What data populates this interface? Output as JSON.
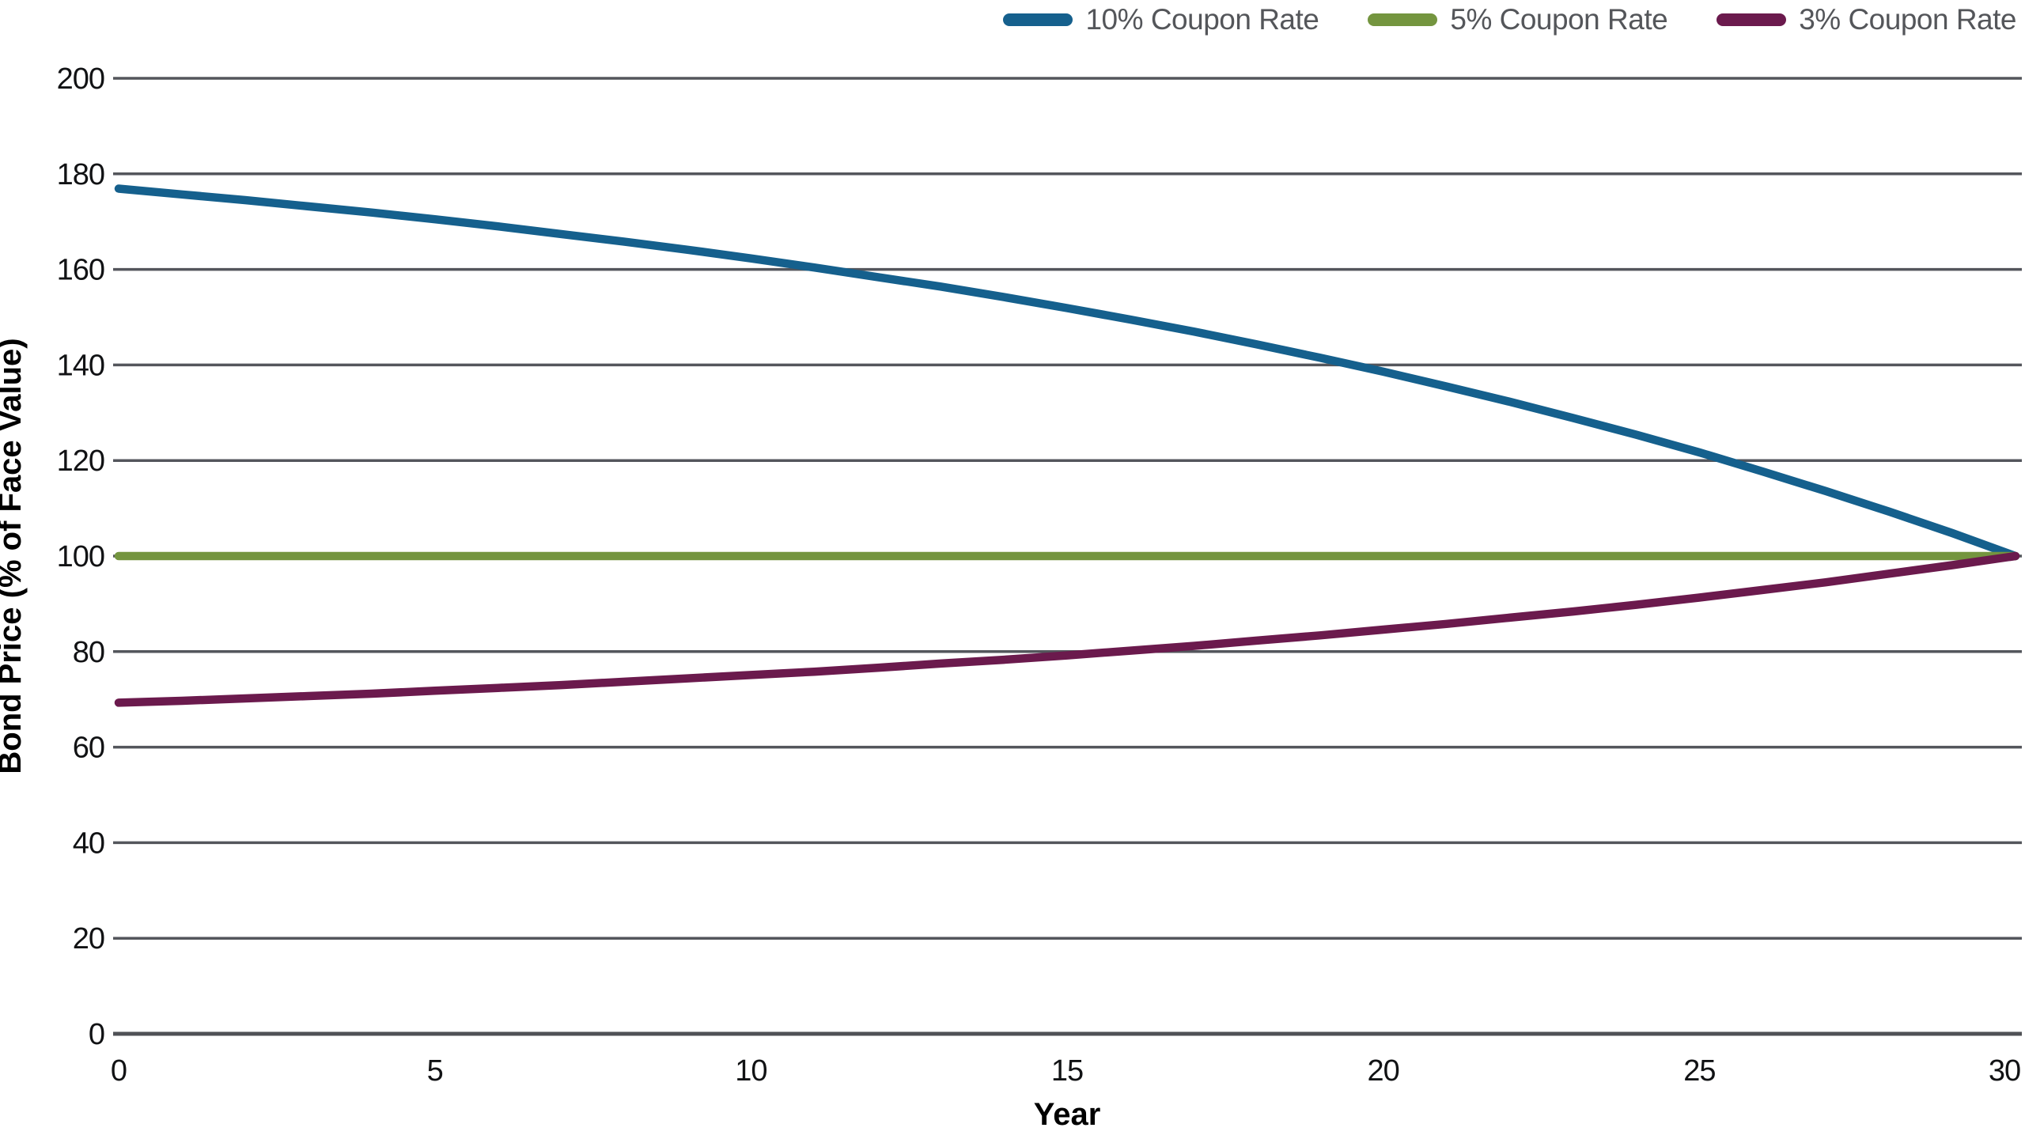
{
  "chart_data": {
    "type": "line",
    "title": "",
    "xlabel": "Year",
    "ylabel": "Bond Price (% of Face Value)",
    "xlim": [
      0,
      30
    ],
    "ylim": [
      0,
      200
    ],
    "xticks": [
      0,
      5,
      10,
      15,
      20,
      25,
      30
    ],
    "yticks": [
      0,
      20,
      40,
      60,
      80,
      100,
      120,
      140,
      160,
      180,
      200
    ],
    "grid": "horizontal",
    "legend_position": "top-right",
    "x": [
      0,
      1,
      2,
      3,
      4,
      5,
      6,
      7,
      8,
      9,
      10,
      11,
      12,
      13,
      14,
      15,
      16,
      17,
      18,
      19,
      20,
      21,
      22,
      23,
      24,
      25,
      26,
      27,
      28,
      29,
      30
    ],
    "series": [
      {
        "name": "10% Coupon Rate",
        "color": "#15608D",
        "values": [
          176.9,
          175.7,
          174.5,
          173.2,
          171.9,
          170.5,
          169.0,
          167.4,
          165.8,
          164.1,
          162.3,
          160.4,
          158.4,
          156.4,
          154.2,
          151.9,
          149.5,
          147.0,
          144.3,
          141.5,
          138.6,
          135.5,
          132.3,
          128.9,
          125.4,
          121.7,
          117.7,
          113.6,
          109.3,
          104.8,
          100.0
        ]
      },
      {
        "name": "5% Coupon Rate",
        "color": "#74953F",
        "values": [
          100,
          100,
          100,
          100,
          100,
          100,
          100,
          100,
          100,
          100,
          100,
          100,
          100,
          100,
          100,
          100,
          100,
          100,
          100,
          100,
          100,
          100,
          100,
          100,
          100,
          100,
          100,
          100,
          100,
          100,
          100
        ]
      },
      {
        "name": "3% Coupon Rate",
        "color": "#6B1A4D",
        "values": [
          69.3,
          69.7,
          70.2,
          70.7,
          71.2,
          71.8,
          72.4,
          73.0,
          73.7,
          74.4,
          75.1,
          75.8,
          76.6,
          77.5,
          78.3,
          79.2,
          80.2,
          81.2,
          82.3,
          83.4,
          84.6,
          85.8,
          87.1,
          88.4,
          89.8,
          91.3,
          92.9,
          94.5,
          96.3,
          98.1,
          100.0
        ]
      }
    ]
  },
  "styles": {
    "background": "#ffffff",
    "grid_color": "#54565C",
    "axis_color": "#4F5156",
    "tick_label_color": "#111214",
    "axis_title_color": "#000000",
    "legend_text_color": "#54565A"
  }
}
